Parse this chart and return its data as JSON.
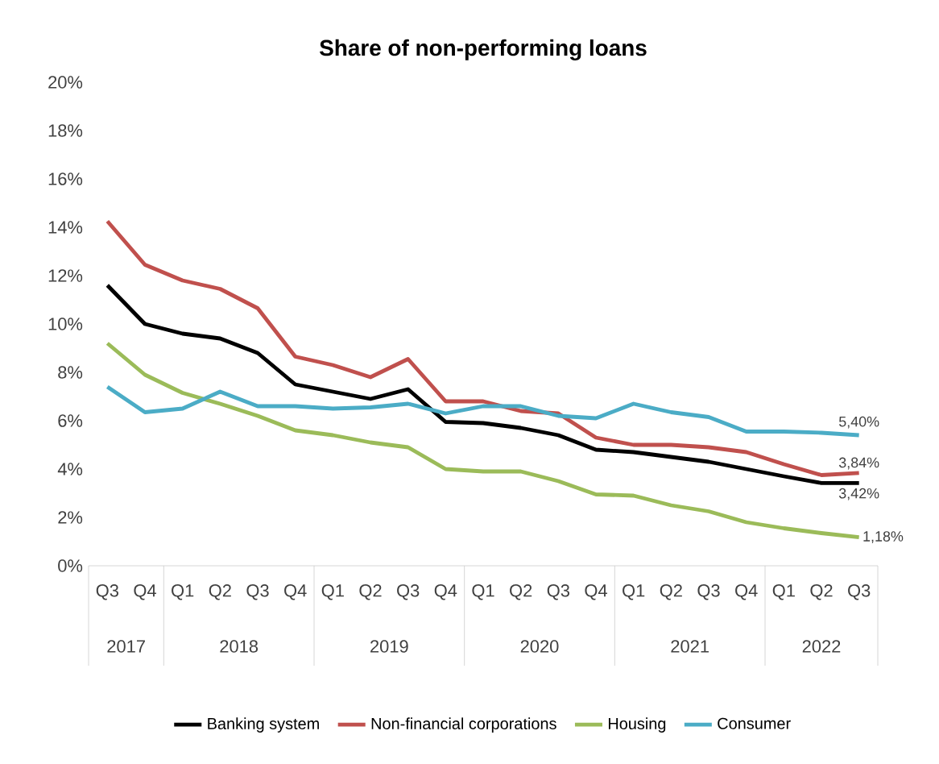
{
  "chart_data": {
    "type": "line",
    "title": "Share of non-performing loans",
    "categories": [
      "Q3",
      "Q4",
      "Q1",
      "Q2",
      "Q3",
      "Q4",
      "Q1",
      "Q2",
      "Q3",
      "Q4",
      "Q1",
      "Q2",
      "Q3",
      "Q4",
      "Q1",
      "Q2",
      "Q3",
      "Q4",
      "Q1",
      "Q2",
      "Q3"
    ],
    "annotations": [
      "2017",
      "2018",
      "2019",
      "2020",
      "2021",
      "2022"
    ],
    "ylim": [
      0,
      20
    ],
    "yticks": [
      {
        "value": 0,
        "label": "0%"
      },
      {
        "value": 2,
        "label": "2%"
      },
      {
        "value": 4,
        "label": "4%"
      },
      {
        "value": 6,
        "label": "6%"
      },
      {
        "value": 8,
        "label": "8%"
      },
      {
        "value": 10,
        "label": "10%"
      },
      {
        "value": 12,
        "label": "12%"
      },
      {
        "value": 14,
        "label": "14%"
      },
      {
        "value": 16,
        "label": "16%"
      },
      {
        "value": 18,
        "label": "18%"
      },
      {
        "value": 20,
        "label": "20%"
      }
    ],
    "grid": false,
    "legend": "bottom",
    "marker": "none",
    "line_style": "solid",
    "series": [
      {
        "name": "Banking system",
        "color": "#000000",
        "values": [
          11.6,
          10.0,
          9.6,
          9.4,
          8.8,
          7.5,
          7.2,
          6.9,
          7.3,
          5.95,
          5.9,
          5.7,
          5.4,
          4.8,
          4.7,
          4.5,
          4.3,
          4.0,
          3.7,
          3.42,
          3.42
        ],
        "value_labels": [
          null,
          null,
          null,
          null,
          null,
          null,
          null,
          null,
          null,
          null,
          null,
          null,
          null,
          null,
          null,
          null,
          null,
          null,
          null,
          null,
          "3,42%"
        ]
      },
      {
        "name": "Non-financial corporations",
        "color": "#c0504d",
        "values": [
          14.25,
          12.45,
          11.8,
          11.45,
          10.65,
          8.65,
          8.3,
          7.8,
          8.55,
          6.8,
          6.8,
          6.4,
          6.3,
          5.3,
          5.0,
          5.0,
          4.9,
          4.7,
          4.2,
          3.75,
          3.84
        ],
        "value_labels": [
          null,
          null,
          null,
          null,
          null,
          null,
          null,
          null,
          null,
          null,
          null,
          null,
          null,
          null,
          null,
          null,
          null,
          null,
          null,
          null,
          "3,84%"
        ]
      },
      {
        "name": "Housing",
        "color": "#9bbb59",
        "values": [
          9.2,
          7.9,
          7.15,
          6.7,
          6.2,
          5.6,
          5.4,
          5.1,
          4.9,
          4.0,
          3.9,
          3.9,
          3.5,
          2.95,
          2.9,
          2.5,
          2.25,
          1.8,
          1.55,
          1.35,
          1.18
        ],
        "value_labels": [
          null,
          null,
          null,
          null,
          null,
          null,
          null,
          null,
          null,
          null,
          null,
          null,
          null,
          null,
          null,
          null,
          null,
          null,
          null,
          null,
          "1,18%"
        ]
      },
      {
        "name": "Consumer",
        "color": "#4bacc6",
        "values": [
          7.4,
          6.35,
          6.5,
          7.2,
          6.6,
          6.6,
          6.5,
          6.55,
          6.7,
          6.3,
          6.6,
          6.6,
          6.2,
          6.1,
          6.7,
          6.35,
          6.15,
          5.55,
          5.55,
          5.5,
          5.4
        ],
        "value_labels": [
          null,
          null,
          null,
          null,
          null,
          null,
          null,
          null,
          null,
          null,
          null,
          null,
          null,
          null,
          null,
          null,
          null,
          null,
          null,
          null,
          "5,40%"
        ]
      }
    ]
  }
}
